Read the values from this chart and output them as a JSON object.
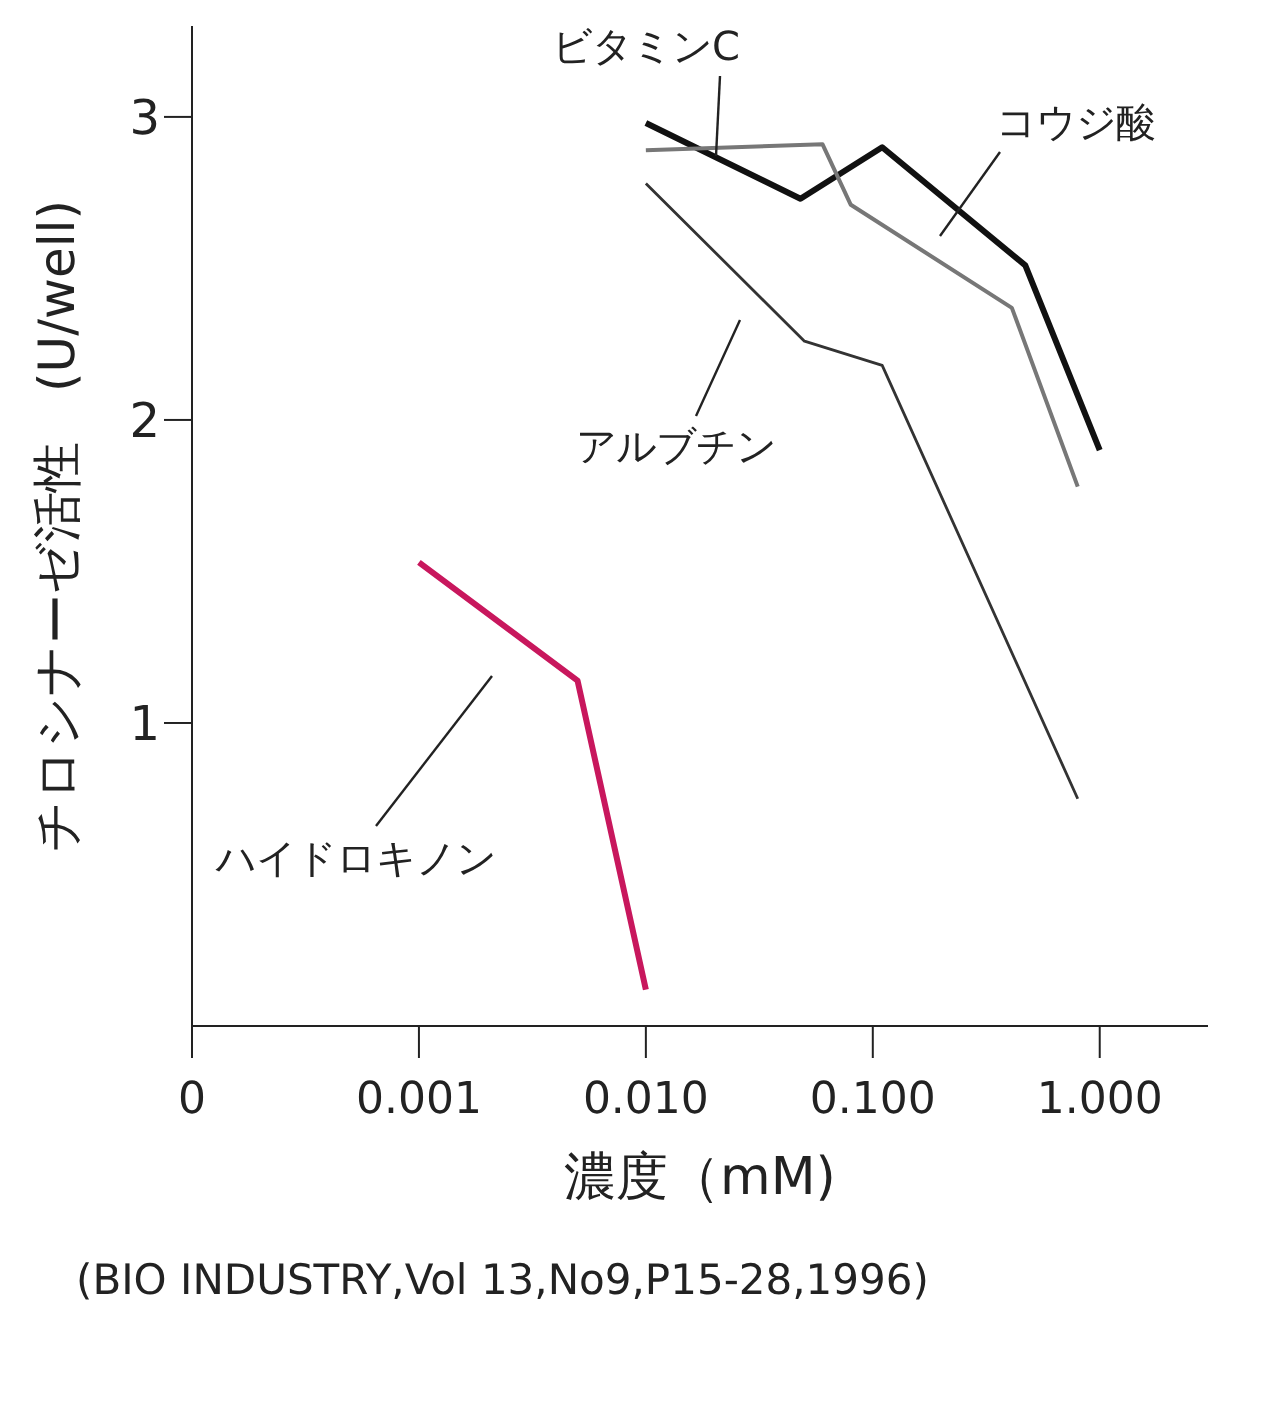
{
  "chart_data": {
    "type": "line",
    "xlabel": "濃度（mM)",
    "ylabel": "チロシナーゼ活性　(U/well)",
    "log": "x",
    "xlim": [
      0.0001,
      3
    ],
    "xticks": [
      {
        "value": 0.0001,
        "label": "0"
      },
      {
        "value": 0.001,
        "label": "0.001"
      },
      {
        "value": 0.01,
        "label": "0.010"
      },
      {
        "value": 0.1,
        "label": "0.100"
      },
      {
        "value": 1,
        "label": "1.000"
      }
    ],
    "ylim": [
      0,
      3.3
    ],
    "yticks": [
      1,
      2,
      3
    ],
    "grid": false,
    "legend": false,
    "marker": "none",
    "line_style": "solid",
    "series": [
      {
        "name": "コウジ酸",
        "color": "#111111",
        "x": [
          0.01,
          0.048,
          0.11,
          0.47,
          1.0
        ],
        "values": [
          2.98,
          2.73,
          2.9,
          2.51,
          1.9
        ]
      },
      {
        "name": "ビタミンC",
        "color": "#777777",
        "x": [
          0.01,
          0.06,
          0.08,
          0.41,
          0.8
        ],
        "values": [
          2.89,
          2.91,
          2.71,
          2.37,
          1.78
        ]
      },
      {
        "name": "アルブチン",
        "color": "#333333",
        "x": [
          0.01,
          0.05,
          0.11,
          0.8
        ],
        "values": [
          2.78,
          2.26,
          2.18,
          0.75
        ]
      },
      {
        "name": "ハイドロキノン",
        "color": "#c8175d",
        "x": [
          0.001,
          0.005,
          0.01
        ],
        "values": [
          1.53,
          1.14,
          0.12
        ]
      }
    ],
    "annotations": [
      "(BIO INDUSTRY,Vol 13,No9,P15-28,1996)"
    ]
  }
}
